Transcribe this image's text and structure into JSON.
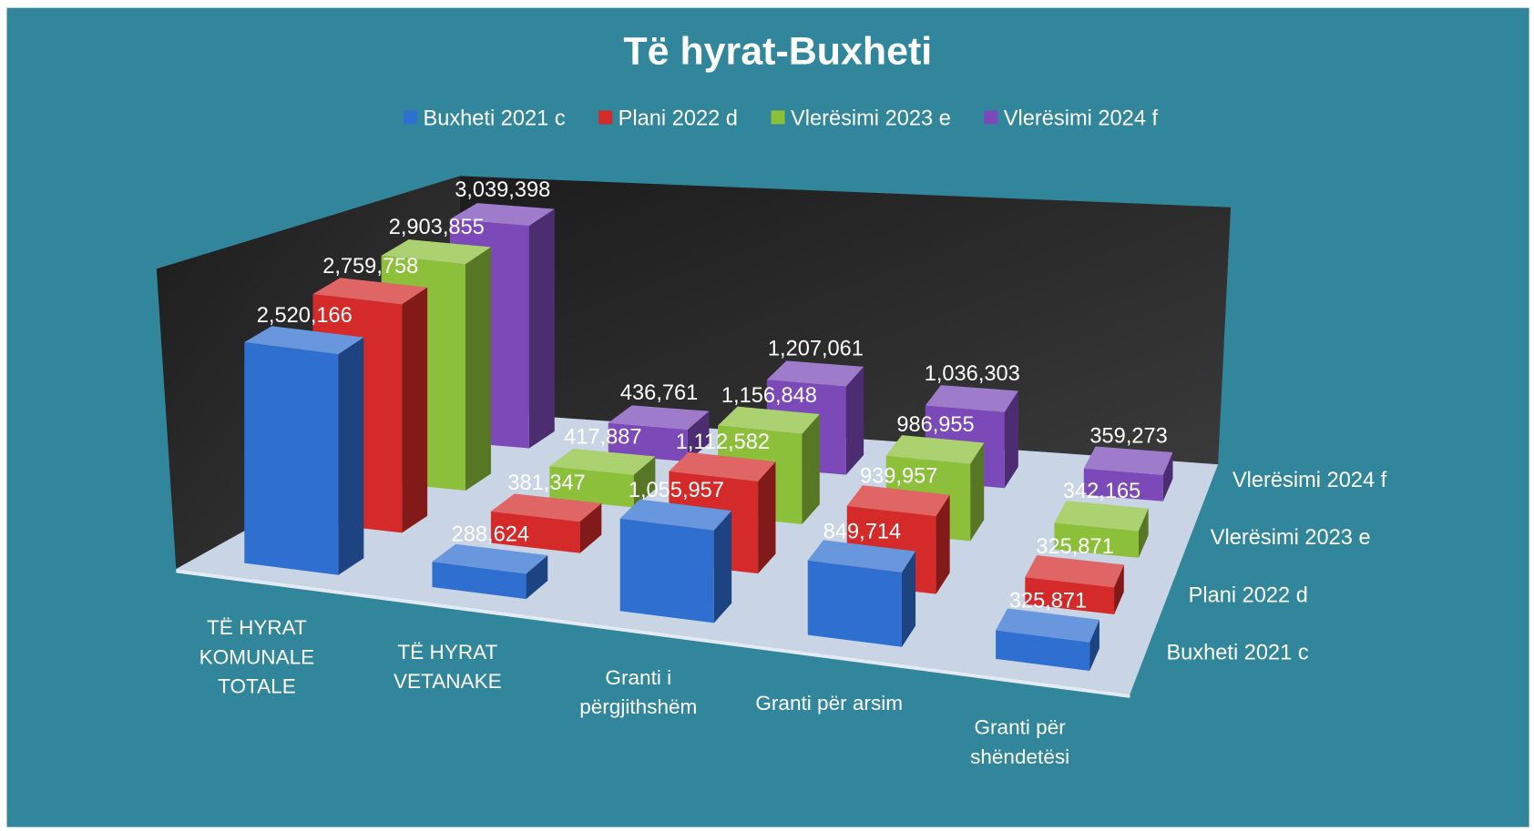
{
  "chart_data": {
    "type": "bar3d",
    "title": "Të hyrat-Buxheti",
    "categories": [
      "TË HYRAT KOMUNALE TOTALE",
      "TË HYRAT VETANAKE",
      "Granti i përgjithshëm",
      "Granti për arsim",
      "Granti për shëndetësi"
    ],
    "series": [
      {
        "name": "Buxheti 2021 c",
        "color": "#2f6fd0",
        "values": [
          2520166,
          288624,
          1055957,
          849714,
          325871
        ],
        "value_labels": [
          "2,520,166",
          "288,624",
          "1,055,957",
          "849,714",
          "325,871"
        ]
      },
      {
        "name": "Plani 2022 d",
        "color": "#d42a2a",
        "values": [
          2759758,
          381347,
          1112582,
          939957,
          325871
        ],
        "value_labels": [
          "2,759,758",
          "381,347",
          "1,112,582",
          "939,957",
          "325,871"
        ]
      },
      {
        "name": "Vlerësimi 2023 e",
        "color": "#8dc03a",
        "values": [
          2903855,
          417887,
          1156848,
          986955,
          342165
        ],
        "value_labels": [
          "2,903,855",
          "417,887",
          "1,156,848",
          "986,955",
          "342,165"
        ]
      },
      {
        "name": "Vlerësimi 2024 f",
        "color": "#7b4ab8",
        "values": [
          3039398,
          436761,
          1207061,
          1036303,
          359273
        ],
        "value_labels": [
          "3,039,398",
          "436,761",
          "1,207,061",
          "1,036,303",
          "359,273"
        ]
      }
    ],
    "legend": "top"
  }
}
